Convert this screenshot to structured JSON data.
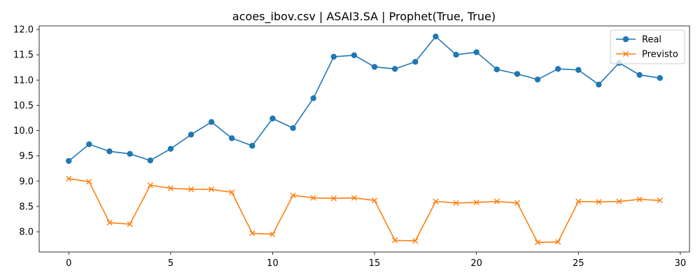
{
  "chart_data": {
    "type": "line",
    "title": "acoes_ibov.csv | ASAI3.SA | Prophet(True, True)",
    "xlabel": "",
    "ylabel": "",
    "xlim": [
      -1.45,
      30.45
    ],
    "ylim": [
      7.6,
      12.07
    ],
    "x_ticks": [
      0,
      5,
      10,
      15,
      20,
      25,
      30
    ],
    "y_ticks": [
      8.0,
      8.5,
      9.0,
      9.5,
      10.0,
      10.5,
      11.0,
      11.5,
      12.0
    ],
    "grid": false,
    "legend_position": "top-right",
    "x": [
      0,
      1,
      2,
      3,
      4,
      5,
      6,
      7,
      8,
      9,
      10,
      11,
      12,
      13,
      14,
      15,
      16,
      17,
      18,
      19,
      20,
      21,
      22,
      23,
      24,
      25,
      26,
      27,
      28,
      29
    ],
    "series": [
      {
        "name": "Real",
        "color": "#1f77b4",
        "marker": "circle",
        "values": [
          9.4,
          9.73,
          9.59,
          9.54,
          9.41,
          9.64,
          9.92,
          10.17,
          9.85,
          9.7,
          10.24,
          10.05,
          10.64,
          11.46,
          11.49,
          11.26,
          11.22,
          11.36,
          11.86,
          11.5,
          11.55,
          11.21,
          11.12,
          11.01,
          11.22,
          11.2,
          10.91,
          11.34,
          11.1,
          11.04
        ]
      },
      {
        "name": "Previsto",
        "color": "#ff7f0e",
        "marker": "x",
        "values": [
          9.05,
          8.99,
          8.18,
          8.15,
          8.92,
          8.86,
          8.84,
          8.84,
          8.78,
          7.97,
          7.95,
          8.72,
          8.67,
          8.66,
          8.67,
          8.62,
          7.83,
          7.82,
          8.6,
          8.57,
          8.58,
          8.6,
          8.57,
          7.79,
          7.8,
          8.6,
          8.59,
          8.6,
          8.64,
          8.62
        ]
      }
    ]
  }
}
